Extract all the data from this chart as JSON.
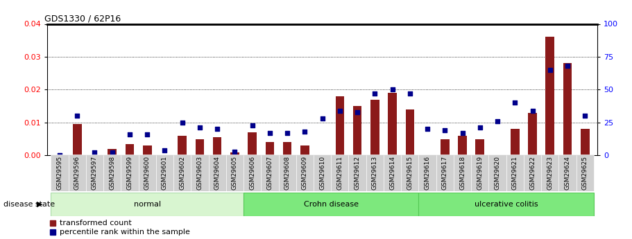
{
  "title": "GDS1330 / 62P16",
  "samples": [
    "GSM29595",
    "GSM29596",
    "GSM29597",
    "GSM29598",
    "GSM29599",
    "GSM29600",
    "GSM29601",
    "GSM29602",
    "GSM29603",
    "GSM29604",
    "GSM29605",
    "GSM29606",
    "GSM29607",
    "GSM29608",
    "GSM29609",
    "GSM29610",
    "GSM29611",
    "GSM29612",
    "GSM29613",
    "GSM29614",
    "GSM29615",
    "GSM29616",
    "GSM29617",
    "GSM29618",
    "GSM29619",
    "GSM29620",
    "GSM29621",
    "GSM29622",
    "GSM29623",
    "GSM29624",
    "GSM29625"
  ],
  "transformed_count": [
    0.0,
    0.0095,
    0.0,
    0.002,
    0.0035,
    0.003,
    0.0,
    0.006,
    0.005,
    0.0055,
    0.001,
    0.007,
    0.004,
    0.004,
    0.003,
    0.0,
    0.018,
    0.015,
    0.017,
    0.019,
    0.014,
    0.0,
    0.005,
    0.006,
    0.005,
    0.0,
    0.008,
    0.013,
    0.036,
    0.028,
    0.008
  ],
  "percentile_rank": [
    0,
    30,
    2,
    2,
    16,
    16,
    4,
    25,
    21,
    20,
    3,
    23,
    17,
    17,
    18,
    28,
    34,
    33,
    47,
    50,
    47,
    20,
    19,
    17,
    21,
    26,
    40,
    34,
    65,
    68,
    30
  ],
  "groups": [
    {
      "label": "normal",
      "start": 0,
      "end": 11,
      "color": "#c8f0c0"
    },
    {
      "label": "Crohn disease",
      "start": 11,
      "end": 21,
      "color": "#7de87d"
    },
    {
      "label": "ulcerative colitis",
      "start": 21,
      "end": 31,
      "color": "#7de87d"
    }
  ],
  "bar_color": "#8B1A1A",
  "dot_color": "#00008B",
  "ylim_left": [
    0,
    0.04
  ],
  "ylim_right": [
    0,
    100
  ],
  "yticks_left": [
    0,
    0.01,
    0.02,
    0.03,
    0.04
  ],
  "yticks_right": [
    0,
    25,
    50,
    75,
    100
  ],
  "legend_bar_label": "transformed count",
  "legend_dot_label": "percentile rank within the sample",
  "disease_state_label": "disease state",
  "group_label_color_normal": "#d8f5d0",
  "group_label_color_crohn": "#90ee90",
  "group_label_color_uc": "#5dca5d"
}
